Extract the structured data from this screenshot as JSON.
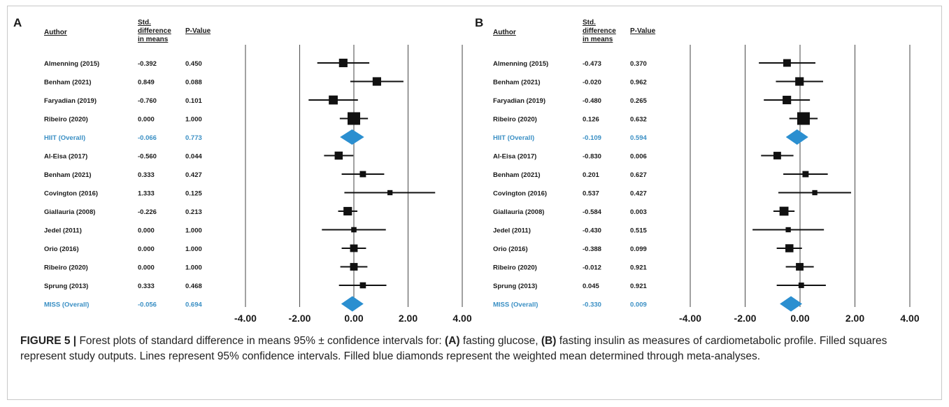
{
  "caption": {
    "label": "FIGURE 5 |",
    "part1": " Forest plots of standard difference in means 95% ± confidence intervals for: ",
    "a_tag": "(A)",
    "part2": " fasting glucose, ",
    "b_tag": "(B)",
    "part3": " fasting insulin as measures of cardiometabolic profile. Filled squares represent study outputs. Lines represent 95% confidence intervals. Filled blue diamonds represent the weighted mean determined through meta-analyses."
  },
  "colors": {
    "overall": "#3a8fc4",
    "study": "#111111",
    "diamond": "#2b8fd0",
    "grid": "#555555"
  },
  "chart_data": [
    {
      "type": "forest",
      "panel_label": "A",
      "headers": {
        "author": "Author",
        "smd_line1": "Std.",
        "smd_line2": "difference",
        "smd_line3": "in means",
        "p": "P-Value"
      },
      "xlim": [
        -4,
        4
      ],
      "tick_labels": [
        "-4.00",
        "-2.00",
        "0.00",
        "2.00",
        "4.00"
      ],
      "ticks": [
        -4,
        -2,
        0,
        2,
        4
      ],
      "rows": [
        {
          "author": "Almenning (2015)",
          "smd": "-0.392",
          "p": "0.450",
          "est": -0.392,
          "lo": -1.35,
          "hi": 0.57,
          "weight": 0.55,
          "overall": false
        },
        {
          "author": "Benham (2021)",
          "smd": "0.849",
          "p": "0.088",
          "est": 0.849,
          "lo": -0.13,
          "hi": 1.83,
          "weight": 0.55,
          "overall": false
        },
        {
          "author": "Faryadian (2019)",
          "smd": "-0.760",
          "p": "0.101",
          "est": -0.76,
          "lo": -1.67,
          "hi": 0.15,
          "weight": 0.6,
          "overall": false
        },
        {
          "author": "Ribeiro (2020)",
          "smd": "0.000",
          "p": "1.000",
          "est": 0.0,
          "lo": -0.52,
          "hi": 0.52,
          "weight": 1.0,
          "overall": false
        },
        {
          "author": "HIIT (Overall)",
          "smd": "-0.066",
          "p": "0.773",
          "est": -0.066,
          "lo": -0.51,
          "hi": 0.38,
          "weight": 1.0,
          "overall": true
        },
        {
          "author": "Al-Eisa (2017)",
          "smd": "-0.560",
          "p": "0.044",
          "est": -0.56,
          "lo": -1.1,
          "hi": -0.02,
          "weight": 0.5,
          "overall": false
        },
        {
          "author": "Benham (2021)",
          "smd": "0.333",
          "p": "0.427",
          "est": 0.333,
          "lo": -0.45,
          "hi": 1.12,
          "weight": 0.3,
          "overall": false
        },
        {
          "author": "Covington (2016)",
          "smd": "1.333",
          "p": "0.125",
          "est": 1.333,
          "lo": -0.35,
          "hi": 3.0,
          "weight": 0.18,
          "overall": false
        },
        {
          "author": "Giallauria (2008)",
          "smd": "-0.226",
          "p": "0.213",
          "est": -0.226,
          "lo": -0.58,
          "hi": 0.13,
          "weight": 0.55,
          "overall": false
        },
        {
          "author": "Jedel (2011)",
          "smd": "0.000",
          "p": "1.000",
          "est": 0.0,
          "lo": -1.18,
          "hi": 1.18,
          "weight": 0.2,
          "overall": false
        },
        {
          "author": "Orio (2016)",
          "smd": "0.000",
          "p": "1.000",
          "est": 0.0,
          "lo": -0.45,
          "hi": 0.45,
          "weight": 0.45,
          "overall": false
        },
        {
          "author": "Ribeiro (2020)",
          "smd": "0.000",
          "p": "1.000",
          "est": 0.0,
          "lo": -0.5,
          "hi": 0.5,
          "weight": 0.45,
          "overall": false
        },
        {
          "author": "Sprung (2013)",
          "smd": "0.333",
          "p": "0.468",
          "est": 0.333,
          "lo": -0.55,
          "hi": 1.2,
          "weight": 0.28,
          "overall": false
        },
        {
          "author": "MISS (Overall)",
          "smd": "-0.056",
          "p": "0.694",
          "est": -0.056,
          "lo": -0.34,
          "hi": 0.22,
          "weight": 1.0,
          "overall": true
        }
      ]
    },
    {
      "type": "forest",
      "panel_label": "B",
      "headers": {
        "author": "Author",
        "smd_line1": "Std.",
        "smd_line2": "difference",
        "smd_line3": "in means",
        "p": "P-Value"
      },
      "xlim": [
        -4,
        4
      ],
      "tick_labels": [
        "-4.00",
        "-2.00",
        "0.00",
        "2.00",
        "4.00"
      ],
      "ticks": [
        -4,
        -2,
        0,
        2,
        4
      ],
      "rows": [
        {
          "author": "Almenning (2015)",
          "smd": "-0.473",
          "p": "0.370",
          "est": -0.473,
          "lo": -1.5,
          "hi": 0.56,
          "weight": 0.45,
          "overall": false
        },
        {
          "author": "Benham (2021)",
          "smd": "-0.020",
          "p": "0.962",
          "est": -0.02,
          "lo": -0.88,
          "hi": 0.84,
          "weight": 0.55,
          "overall": false
        },
        {
          "author": "Faryadian (2019)",
          "smd": "-0.480",
          "p": "0.265",
          "est": -0.48,
          "lo": -1.32,
          "hi": 0.36,
          "weight": 0.55,
          "overall": false
        },
        {
          "author": "Ribeiro (2020)",
          "smd": "0.126",
          "p": "0.632",
          "est": 0.126,
          "lo": -0.39,
          "hi": 0.64,
          "weight": 1.0,
          "overall": false
        },
        {
          "author": "HIIT (Overall)",
          "smd": "-0.109",
          "p": "0.594",
          "est": -0.109,
          "lo": -0.51,
          "hi": 0.29,
          "weight": 1.0,
          "overall": true
        },
        {
          "author": "Al-Eisa (2017)",
          "smd": "-0.830",
          "p": "0.006",
          "est": -0.83,
          "lo": -1.42,
          "hi": -0.24,
          "weight": 0.45,
          "overall": false
        },
        {
          "author": "Benham (2021)",
          "smd": "0.201",
          "p": "0.627",
          "est": 0.201,
          "lo": -0.61,
          "hi": 1.01,
          "weight": 0.3,
          "overall": false
        },
        {
          "author": "Covington (2016)",
          "smd": "0.537",
          "p": "0.427",
          "est": 0.537,
          "lo": -0.79,
          "hi": 1.86,
          "weight": 0.18,
          "overall": false
        },
        {
          "author": "Giallauria (2008)",
          "smd": "-0.584",
          "p": "0.003",
          "est": -0.584,
          "lo": -0.97,
          "hi": -0.2,
          "weight": 0.6,
          "overall": false
        },
        {
          "author": "Jedel (2011)",
          "smd": "-0.430",
          "p": "0.515",
          "est": -0.43,
          "lo": -1.73,
          "hi": 0.87,
          "weight": 0.18,
          "overall": false
        },
        {
          "author": "Orio (2016)",
          "smd": "-0.388",
          "p": "0.099",
          "est": -0.388,
          "lo": -0.85,
          "hi": 0.07,
          "weight": 0.5,
          "overall": false
        },
        {
          "author": "Ribeiro (2020)",
          "smd": "-0.012",
          "p": "0.921",
          "est": -0.012,
          "lo": -0.52,
          "hi": 0.5,
          "weight": 0.45,
          "overall": false
        },
        {
          "author": "Sprung (2013)",
          "smd": "0.045",
          "p": "0.921",
          "est": 0.045,
          "lo": -0.85,
          "hi": 0.94,
          "weight": 0.22,
          "overall": false
        },
        {
          "author": "MISS (Overall)",
          "smd": "-0.330",
          "p": "0.009",
          "est": -0.33,
          "lo": -0.58,
          "hi": -0.08,
          "weight": 1.0,
          "overall": true
        }
      ]
    }
  ]
}
